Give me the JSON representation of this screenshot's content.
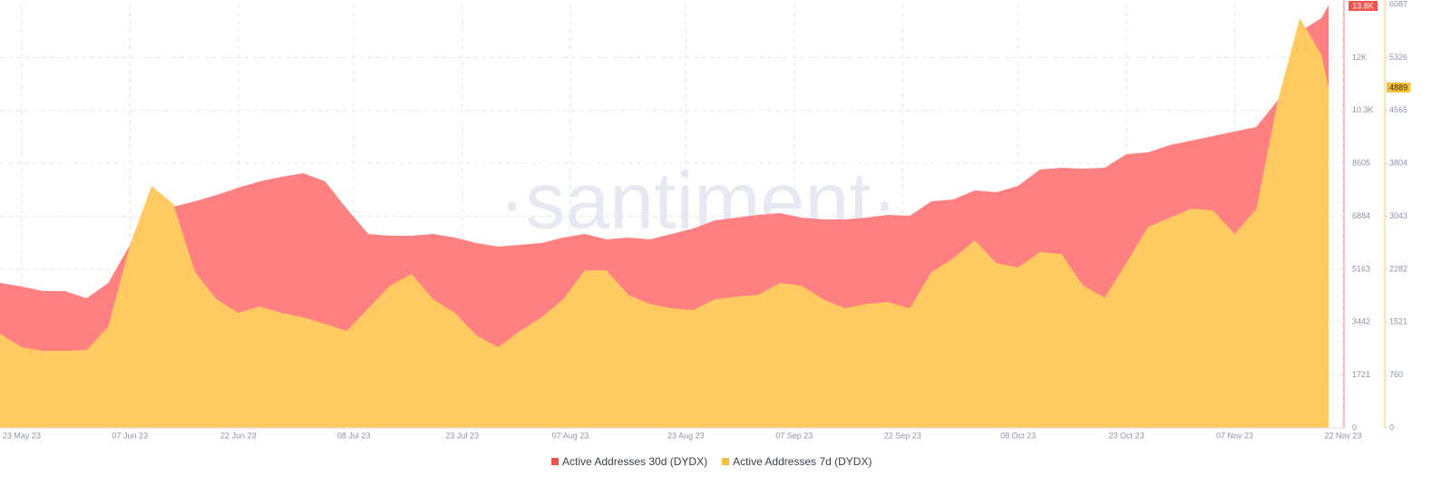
{
  "chart_data": {
    "type": "area",
    "watermark": "·santiment·",
    "x": [
      "2023-05-20",
      "2023-05-23",
      "2023-05-26",
      "2023-05-29",
      "2023-06-01",
      "2023-06-04",
      "2023-06-07",
      "2023-06-10",
      "2023-06-13",
      "2023-06-16",
      "2023-06-19",
      "2023-06-22",
      "2023-06-25",
      "2023-06-28",
      "2023-07-01",
      "2023-07-04",
      "2023-07-07",
      "2023-07-10",
      "2023-07-13",
      "2023-07-16",
      "2023-07-19",
      "2023-07-22",
      "2023-07-25",
      "2023-07-28",
      "2023-07-31",
      "2023-08-03",
      "2023-08-06",
      "2023-08-09",
      "2023-08-12",
      "2023-08-15",
      "2023-08-18",
      "2023-08-21",
      "2023-08-24",
      "2023-08-27",
      "2023-08-30",
      "2023-09-02",
      "2023-09-05",
      "2023-09-08",
      "2023-09-11",
      "2023-09-14",
      "2023-09-17",
      "2023-09-20",
      "2023-09-23",
      "2023-09-26",
      "2023-09-29",
      "2023-10-02",
      "2023-10-05",
      "2023-10-08",
      "2023-10-11",
      "2023-10-14",
      "2023-10-17",
      "2023-10-20",
      "2023-10-23",
      "2023-10-26",
      "2023-10-29",
      "2023-11-01",
      "2023-11-04",
      "2023-11-07",
      "2023-11-10",
      "2023-11-13",
      "2023-11-16",
      "2023-11-19",
      "2023-11-20"
    ],
    "xlim": [
      "2023-05-20",
      "2023-11-20"
    ],
    "xticks": [
      {
        "value": "2023-05-23",
        "label": "23 May 23"
      },
      {
        "value": "2023-06-07",
        "label": "07 Jun 23"
      },
      {
        "value": "2023-06-22",
        "label": "22 Jun 23"
      },
      {
        "value": "2023-07-08",
        "label": "08 Jul 23"
      },
      {
        "value": "2023-07-23",
        "label": "23 Jul 23"
      },
      {
        "value": "2023-08-07",
        "label": "07 Aug 23"
      },
      {
        "value": "2023-08-23",
        "label": "23 Aug 23"
      },
      {
        "value": "2023-09-07",
        "label": "07 Sep 23"
      },
      {
        "value": "2023-09-22",
        "label": "22 Sep 23"
      },
      {
        "value": "2023-10-08",
        "label": "08 Oct 23"
      },
      {
        "value": "2023-10-23",
        "label": "23 Oct 23"
      },
      {
        "value": "2023-11-07",
        "label": "07 Nov 23"
      },
      {
        "value": "2023-11-22",
        "label": "22 Nov 23"
      }
    ],
    "ylim": [
      0,
      13768
    ],
    "yticks": [
      0,
      1721,
      3442,
      5163,
      6884,
      8605,
      {
        "value": 10326,
        "label": "10.3K"
      },
      {
        "value": 12047,
        "label": "12K"
      }
    ],
    "y2lim": [
      0,
      6087
    ],
    "y2ticks": [
      0,
      760,
      1521,
      2282,
      3043,
      3804,
      4565,
      5326,
      6087
    ],
    "grid": true,
    "legend": "bottom",
    "series": [
      {
        "name": "Active Addresses 30d (DYDX)",
        "color": "#ff8080",
        "badge_color": "#ef5350",
        "values": [
          4717,
          4599,
          4451,
          4451,
          4216,
          4717,
          5955,
          6839,
          7193,
          7370,
          7576,
          7812,
          8019,
          8166,
          8284,
          8019,
          7134,
          6309,
          6250,
          6250,
          6309,
          6191,
          6014,
          5896,
          5955,
          6014,
          6191,
          6309,
          6132,
          6191,
          6132,
          6309,
          6486,
          6751,
          6839,
          6928,
          6987,
          6839,
          6780,
          6780,
          6839,
          6928,
          6898,
          7370,
          7429,
          7724,
          7665,
          7871,
          8402,
          8461,
          8431,
          8461,
          8903,
          8962,
          9198,
          9345,
          9493,
          9640,
          9787,
          10672,
          12883,
          13325,
          13750
        ],
        "value_labels": [
          null,
          null,
          null,
          null,
          null,
          null,
          null,
          null,
          null,
          null,
          null,
          null,
          null,
          null,
          null,
          null,
          null,
          null,
          null,
          null,
          null,
          null,
          null,
          null,
          null,
          null,
          null,
          null,
          null,
          null,
          null,
          null,
          null,
          null,
          null,
          null,
          null,
          null,
          null,
          null,
          null,
          null,
          null,
          null,
          null,
          null,
          null,
          null,
          null,
          null,
          null,
          null,
          null,
          null,
          null,
          null,
          null,
          null,
          null,
          null,
          null,
          null,
          "13.8K"
        ]
      },
      {
        "name": "Active Addresses 7d (DYDX)",
        "color": "#ffca62",
        "badge_color": "#f5c03a",
        "axis": "y2",
        "values": [
          1355,
          1160,
          1108,
          1108,
          1121,
          1459,
          2632,
          3479,
          3218,
          2241,
          1850,
          1655,
          1746,
          1655,
          1590,
          1498,
          1394,
          1720,
          2046,
          2215,
          1850,
          1655,
          1329,
          1160,
          1394,
          1590,
          1850,
          2267,
          2267,
          1915,
          1785,
          1720,
          1694,
          1850,
          1889,
          1915,
          2085,
          2046,
          1850,
          1720,
          1785,
          1811,
          1720,
          2241,
          2437,
          2697,
          2371,
          2306,
          2528,
          2502,
          2046,
          1876,
          2371,
          2893,
          3023,
          3153,
          3127,
          2788,
          3153,
          4717,
          5890,
          5368,
          4889
        ],
        "value_labels": [
          null,
          null,
          null,
          null,
          null,
          null,
          null,
          null,
          null,
          null,
          null,
          null,
          null,
          null,
          null,
          null,
          null,
          null,
          null,
          null,
          null,
          null,
          null,
          null,
          null,
          null,
          null,
          null,
          null,
          null,
          null,
          null,
          null,
          null,
          null,
          null,
          null,
          null,
          null,
          null,
          null,
          null,
          null,
          null,
          null,
          null,
          null,
          null,
          null,
          null,
          null,
          null,
          null,
          null,
          null,
          null,
          null,
          null,
          null,
          null,
          null,
          null,
          "4889"
        ]
      }
    ]
  }
}
